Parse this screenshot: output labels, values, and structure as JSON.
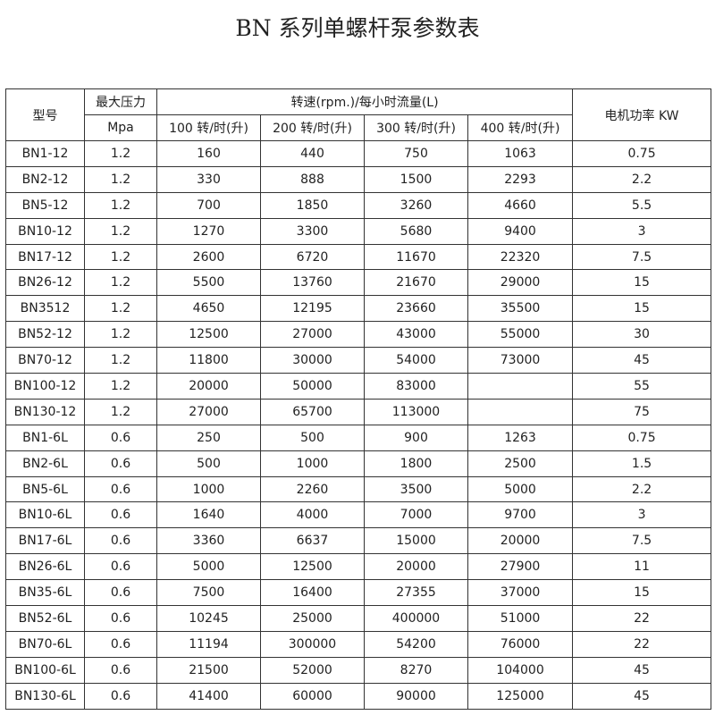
{
  "title": "BN 系列单螺杆泵参数表",
  "headers": {
    "model": "型号",
    "pressure_line1": "最大压力",
    "pressure_line2": "Mpa",
    "speed_group": "转速(rpm.)/每小时流量(L)",
    "speeds": [
      "100 转/时(升)",
      "200 转/时(升)",
      "300 转/时(升)",
      "400 转/时(升)"
    ],
    "power": "电机功率 KW"
  },
  "rows": [
    [
      "BN1-12",
      "1.2",
      "160",
      "440",
      "750",
      "1063",
      "0.75"
    ],
    [
      "BN2-12",
      "1.2",
      "330",
      "888",
      "1500",
      "2293",
      "2.2"
    ],
    [
      "BN5-12",
      "1.2",
      "700",
      "1850",
      "3260",
      "4660",
      "5.5"
    ],
    [
      "BN10-12",
      "1.2",
      "1270",
      "3300",
      "5680",
      "9400",
      "3"
    ],
    [
      "BN17-12",
      "1.2",
      "2600",
      "6720",
      "11670",
      "22320",
      "7.5"
    ],
    [
      "BN26-12",
      "1.2",
      "5500",
      "13760",
      "21670",
      "29000",
      "15"
    ],
    [
      "BN3512",
      "1.2",
      "4650",
      "12195",
      "23660",
      "35500",
      "15"
    ],
    [
      "BN52-12",
      "1.2",
      "12500",
      "27000",
      "43000",
      "55000",
      "30"
    ],
    [
      "BN70-12",
      "1.2",
      "11800",
      "30000",
      "54000",
      "73000",
      "45"
    ],
    [
      "BN100-12",
      "1.2",
      "20000",
      "50000",
      "83000",
      "",
      "55"
    ],
    [
      "BN130-12",
      "1.2",
      "27000",
      "65700",
      "113000",
      "",
      "75"
    ],
    [
      "BN1-6L",
      "0.6",
      "250",
      "500",
      "900",
      "1263",
      "0.75"
    ],
    [
      "BN2-6L",
      "0.6",
      "500",
      "1000",
      "1800",
      "2500",
      "1.5"
    ],
    [
      "BN5-6L",
      "0.6",
      "1000",
      "2260",
      "3500",
      "5000",
      "2.2"
    ],
    [
      "BN10-6L",
      "0.6",
      "1640",
      "4000",
      "7000",
      "9700",
      "3"
    ],
    [
      "BN17-6L",
      "0.6",
      "3360",
      "6637",
      "15000",
      "20000",
      "7.5"
    ],
    [
      "BN26-6L",
      "0.6",
      "5000",
      "12500",
      "20000",
      "27900",
      "11"
    ],
    [
      "BN35-6L",
      "0.6",
      "7500",
      "16400",
      "27355",
      "37000",
      "15"
    ],
    [
      "BN52-6L",
      "0.6",
      "10245",
      "25000",
      "400000",
      "51000",
      "22"
    ],
    [
      "BN70-6L",
      "0.6",
      "11194",
      "300000",
      "54200",
      "76000",
      "22"
    ],
    [
      "BN100-6L",
      "0.6",
      "21500",
      "52000",
      "8270",
      "104000",
      "45"
    ],
    [
      "BN130-6L",
      "0.6",
      "41400",
      "60000",
      "90000",
      "125000",
      "45"
    ]
  ]
}
